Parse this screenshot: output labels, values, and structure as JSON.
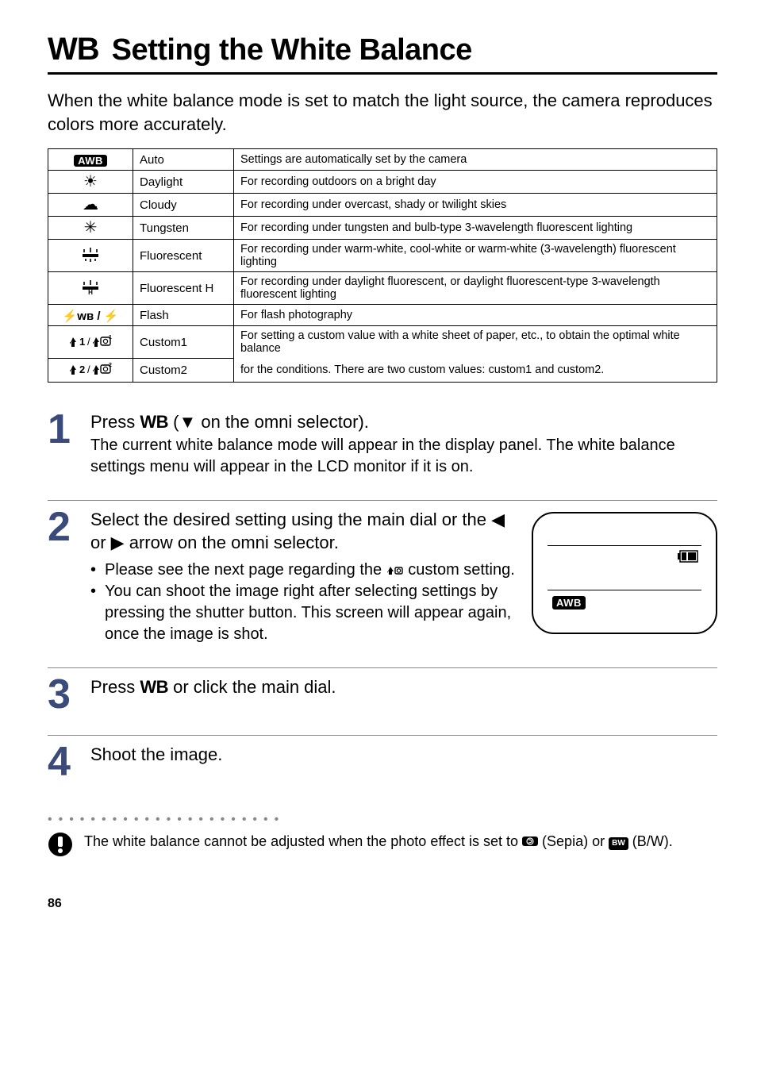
{
  "title": {
    "prefix": "WB",
    "text": "Setting the White Balance"
  },
  "intro": "When the white balance mode is set to match the light source, the camera reproduces colors more accurately.",
  "colors": {
    "step_number": "#3a4a7a",
    "rule": "#000000",
    "dots": "#888888"
  },
  "wb_table": {
    "rows": [
      {
        "icon_type": "awb",
        "icon_text": "AWB",
        "label": "Auto",
        "desc": "Settings are automatically set by the camera"
      },
      {
        "icon_type": "glyph",
        "icon_text": "☀",
        "label": "Daylight",
        "desc": "For recording outdoors on a bright day"
      },
      {
        "icon_type": "glyph",
        "icon_text": "☁",
        "label": "Cloudy",
        "desc": "For recording under overcast, shady or twilight skies"
      },
      {
        "icon_type": "glyph",
        "icon_text": "✳",
        "label": "Tungsten",
        "desc": "For recording under tungsten and bulb-type 3-wavelength fluorescent lighting"
      },
      {
        "icon_type": "svg_fluor",
        "icon_text": "",
        "label": "Fluorescent",
        "desc": "For recording under warm-white, cool-white or warm-white (3-wavelength) fluorescent lighting"
      },
      {
        "icon_type": "svg_fluor_h",
        "icon_text": "",
        "label": "Fluorescent H",
        "desc": "For recording under daylight fluorescent, or daylight fluorescent-type 3-wavelength fluorescent lighting"
      },
      {
        "icon_type": "text",
        "icon_text": "⚡ᴡʙ / ⚡",
        "label": "Flash",
        "desc": "For flash photography"
      },
      {
        "icon_type": "svg_custom1",
        "icon_text": "",
        "label": "Custom1",
        "desc": "For setting a custom value with a white sheet of paper, etc., to obtain the optimal white balance"
      },
      {
        "icon_type": "svg_custom2",
        "icon_text": "",
        "label": "Custom2",
        "desc": "for the conditions. There are two custom values: custom1 and custom2."
      }
    ]
  },
  "steps": {
    "s1": {
      "num": "1",
      "head_pre": "Press ",
      "head_wb": "WB",
      "head_post": " (▼ on the omni selector).",
      "sub": "The current white balance mode will appear in the display panel. The white balance settings menu will appear in the LCD monitor if it is on."
    },
    "s2": {
      "num": "2",
      "head": "Select the desired setting using the main dial or the ◀ or ▶ arrow on the omni selector.",
      "bullet1_pre": "Please see the next page regarding the ",
      "bullet1_post": " custom setting.",
      "bullet2": "You can shoot the image right after selecting settings by pressing the shutter button. This screen will appear again, once the image is shot.",
      "lcd_awb": "AWB"
    },
    "s3": {
      "num": "3",
      "head_pre": "Press ",
      "head_wb": "WB",
      "head_post": " or click the main dial."
    },
    "s4": {
      "num": "4",
      "head": "Shoot the image."
    }
  },
  "note": {
    "text_pre": "The white balance cannot be adjusted when the photo effect is set to ",
    "sepia_badge": "S",
    "text_mid": " (Sepia) or ",
    "bw_badge": "BW",
    "text_post": " (B/W)."
  },
  "page_number": "86"
}
